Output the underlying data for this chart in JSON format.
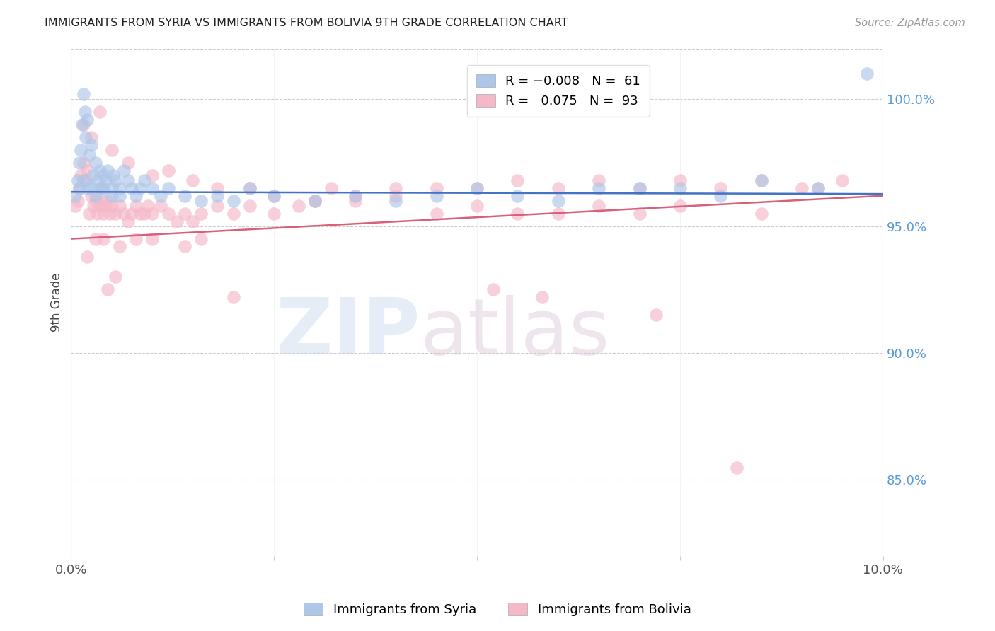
{
  "title": "IMMIGRANTS FROM SYRIA VS IMMIGRANTS FROM BOLIVIA 9TH GRADE CORRELATION CHART",
  "source": "Source: ZipAtlas.com",
  "ylabel": "9th Grade",
  "right_yticks": [
    85.0,
    90.0,
    95.0,
    100.0
  ],
  "xmin": 0.0,
  "xmax": 10.0,
  "ymin": 82.0,
  "ymax": 102.0,
  "syria_color": "#aec6e8",
  "bolivia_color": "#f5b8c8",
  "syria_line_color": "#4472c4",
  "bolivia_line_color": "#d9607a",
  "syria_x": [
    0.05,
    0.08,
    0.1,
    0.12,
    0.14,
    0.15,
    0.17,
    0.18,
    0.2,
    0.22,
    0.25,
    0.27,
    0.3,
    0.32,
    0.35,
    0.38,
    0.4,
    0.42,
    0.45,
    0.5,
    0.52,
    0.55,
    0.6,
    0.65,
    0.7,
    0.75,
    0.8,
    0.85,
    0.9,
    1.0,
    1.1,
    1.2,
    1.4,
    1.6,
    2.0,
    2.5,
    3.0,
    3.5,
    4.0,
    4.5,
    5.0,
    5.5,
    6.0,
    6.5,
    7.0,
    7.5,
    8.0,
    8.5,
    2.2,
    1.8,
    0.6,
    0.4,
    0.3,
    0.25,
    0.2,
    0.15,
    0.1,
    0.35,
    0.5,
    9.8,
    9.2
  ],
  "syria_y": [
    96.2,
    96.8,
    97.5,
    98.0,
    99.0,
    100.2,
    99.5,
    98.5,
    99.2,
    97.8,
    98.2,
    97.0,
    97.5,
    96.8,
    97.2,
    96.5,
    97.0,
    96.8,
    97.2,
    96.5,
    97.0,
    96.8,
    96.5,
    97.2,
    96.8,
    96.5,
    96.2,
    96.5,
    96.8,
    96.5,
    96.2,
    96.5,
    96.2,
    96.0,
    96.0,
    96.2,
    96.0,
    96.2,
    96.0,
    96.2,
    96.5,
    96.2,
    96.0,
    96.5,
    96.5,
    96.5,
    96.2,
    96.8,
    96.5,
    96.2,
    96.2,
    96.5,
    96.2,
    96.5,
    96.5,
    96.8,
    96.5,
    96.5,
    96.2,
    101.0,
    96.5
  ],
  "bolivia_x": [
    0.05,
    0.08,
    0.1,
    0.12,
    0.15,
    0.18,
    0.2,
    0.22,
    0.25,
    0.28,
    0.3,
    0.32,
    0.35,
    0.38,
    0.4,
    0.42,
    0.45,
    0.48,
    0.5,
    0.55,
    0.6,
    0.65,
    0.7,
    0.75,
    0.8,
    0.85,
    0.9,
    0.95,
    1.0,
    1.1,
    1.2,
    1.3,
    1.4,
    1.5,
    1.6,
    1.8,
    2.0,
    2.2,
    2.5,
    2.8,
    3.0,
    3.2,
    3.5,
    4.0,
    4.5,
    5.0,
    5.5,
    6.0,
    6.5,
    7.0,
    7.5,
    8.0,
    8.5,
    9.0,
    9.5,
    0.15,
    0.25,
    0.35,
    0.5,
    0.7,
    1.0,
    1.2,
    1.5,
    1.8,
    2.2,
    2.5,
    3.0,
    3.5,
    4.0,
    4.5,
    5.0,
    5.5,
    6.0,
    6.5,
    7.0,
    7.5,
    8.5,
    2.0,
    0.3,
    0.4,
    0.6,
    0.8,
    1.0,
    1.4,
    1.6,
    5.2,
    5.8,
    7.2,
    8.2,
    9.2,
    0.2,
    0.45,
    0.55
  ],
  "bolivia_y": [
    95.8,
    96.0,
    96.5,
    97.0,
    97.5,
    96.8,
    97.2,
    95.5,
    96.2,
    95.8,
    96.0,
    95.5,
    95.8,
    96.0,
    95.5,
    95.8,
    96.0,
    95.5,
    95.8,
    95.5,
    95.8,
    95.5,
    95.2,
    95.5,
    95.8,
    95.5,
    95.5,
    95.8,
    95.5,
    95.8,
    95.5,
    95.2,
    95.5,
    95.2,
    95.5,
    95.8,
    95.5,
    95.8,
    95.5,
    95.8,
    96.0,
    96.5,
    96.2,
    96.5,
    96.5,
    96.5,
    96.8,
    96.5,
    96.8,
    96.5,
    96.8,
    96.5,
    96.8,
    96.5,
    96.8,
    99.0,
    98.5,
    99.5,
    98.0,
    97.5,
    97.0,
    97.2,
    96.8,
    96.5,
    96.5,
    96.2,
    96.0,
    96.0,
    96.2,
    95.5,
    95.8,
    95.5,
    95.5,
    95.8,
    95.5,
    95.8,
    95.5,
    92.2,
    94.5,
    94.5,
    94.2,
    94.5,
    94.5,
    94.2,
    94.5,
    92.5,
    92.2,
    91.5,
    85.5,
    96.5,
    93.8,
    92.5,
    93.0
  ],
  "syria_trendline_x": [
    0.0,
    10.0
  ],
  "syria_trendline_y": [
    96.35,
    96.27
  ],
  "bolivia_trendline_x": [
    0.0,
    10.0
  ],
  "bolivia_trendline_y": [
    94.5,
    96.2
  ]
}
